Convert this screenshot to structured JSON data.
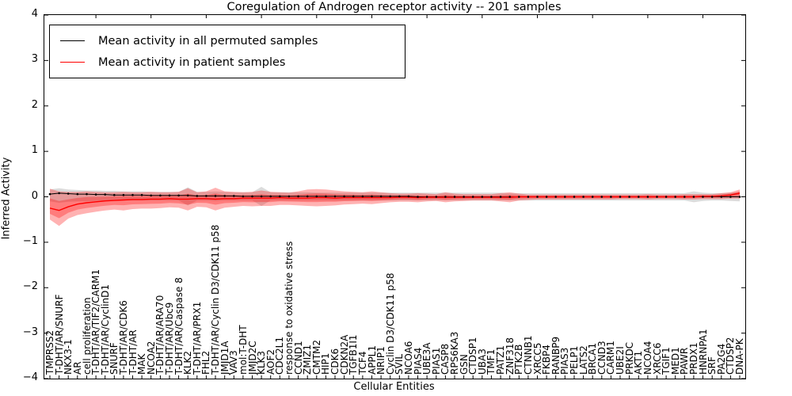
{
  "title": "Coregulation of Androgen receptor activity -- 201 samples",
  "axes": {
    "ylabel": "Inferred Activity",
    "xlabel": "Cellular Entities",
    "y_ticks": [
      "4",
      "3",
      "2",
      "1",
      "0",
      "−1",
      "−2",
      "−3",
      "−4"
    ],
    "ylim": [
      -4,
      4
    ],
    "grid": false
  },
  "legend": {
    "position": "upper-left",
    "items": [
      {
        "label": "Mean activity in all permuted samples",
        "color": "#000000"
      },
      {
        "label": "Mean activity in patient samples",
        "color": "#ff0000"
      }
    ]
  },
  "chart_data": {
    "type": "line",
    "title": "Coregulation of Androgen receptor activity -- 201 samples",
    "xlabel": "Cellular Entities",
    "ylabel": "Inferred Activity",
    "ylim": [
      -4,
      4
    ],
    "band_inner_ratio": 0.5,
    "categories": [
      "TMPRSS2",
      "T-DHT/AR/SNURF",
      "NKX3-1",
      "AR",
      "cell proliferation",
      "T-DHT/AR/TIF2/CARM1",
      "T-DHT/AR/CyclinD1",
      "SNURF",
      "T-DHT/AR/CDK6",
      "T-DHT/AR",
      "MAK",
      "NCOA2",
      "T-DHT/AR/ARA70",
      "T-DHT/AR/Ubc9",
      "T-DHT/AR/Caspase 8",
      "KLK2",
      "T-DHT/AR/PRX1",
      "FHL2",
      "T-DHT/AR/Cyclin D3/CDK11 p58",
      "JMJD1A",
      "VAV3",
      "mol:T-DHT",
      "JMJD2C",
      "KLK3",
      "AOF2",
      "CDC2L1",
      "response to oxidative stress",
      "CCND1",
      "ZMIZ1",
      "CMTM2",
      "HIP1",
      "CDK6",
      "CDKN2A",
      "TGFB1I1",
      "TCF4",
      "APPL1",
      "NRIP1",
      "Cyclin D3/CDK11 p58",
      "SVIL",
      "NCOA6",
      "PIAS4",
      "UBE3A",
      "PIAS1",
      "CASP8",
      "RPS6KA3",
      "GSN",
      "CTDSP1",
      "UBA3",
      "TMF1",
      "PATZ1",
      "ZNF318",
      "PTK2B",
      "CTNNB1",
      "XRCC5",
      "FKBP4",
      "RANBP9",
      "PIAS3",
      "PELP1",
      "LATS2",
      "BRCA1",
      "CCND3",
      "CARM1",
      "UBE2I",
      "PRKDC",
      "AKT1",
      "NCOA4",
      "XRCC6",
      "TGIF1",
      "MED1",
      "PAWR",
      "PRDX1",
      "HNRNPA1",
      "SRF",
      "PA2G4",
      "CTDSP2",
      "DNA-PK"
    ],
    "series": [
      {
        "name": "Mean activity in all permuted samples",
        "color": "#000000",
        "band_color": "#808080",
        "values": [
          0.06,
          0.08,
          0.07,
          0.06,
          0.06,
          0.05,
          0.05,
          0.04,
          0.04,
          0.04,
          0.04,
          0.03,
          0.03,
          0.03,
          0.03,
          0.03,
          0.02,
          0.02,
          0.02,
          0.02,
          0.02,
          0.01,
          0.01,
          0.01,
          0.01,
          0.01,
          0.01,
          0.01,
          0.01,
          0.01,
          0.01,
          0.01,
          0.01,
          0.01,
          0.01,
          0.01,
          0.01,
          0.01,
          0.01,
          0.01,
          0,
          0,
          0,
          0,
          0,
          0,
          0,
          0,
          0,
          0,
          0,
          0,
          0,
          0,
          0,
          0,
          0,
          0,
          0,
          0,
          0,
          0,
          0,
          0,
          0,
          0,
          0,
          0,
          0,
          0,
          0,
          0,
          0,
          0,
          0,
          0
        ],
        "band_upper": [
          0.16,
          0.19,
          0.16,
          0.15,
          0.14,
          0.14,
          0.13,
          0.13,
          0.12,
          0.12,
          0.12,
          0.11,
          0.11,
          0.11,
          0.11,
          0.21,
          0.11,
          0.11,
          0.12,
          0.11,
          0.1,
          0.1,
          0.1,
          0.22,
          0.1,
          0.1,
          0.1,
          0.1,
          0.1,
          0.09,
          0.09,
          0.09,
          0.09,
          0.09,
          0.09,
          0.09,
          0.09,
          0.09,
          0.09,
          0.09,
          0.09,
          0.09,
          0.09,
          0.09,
          0.09,
          0.09,
          0.09,
          0.09,
          0.09,
          0.09,
          0.08,
          0.08,
          0.08,
          0.08,
          0.08,
          0.08,
          0.08,
          0.08,
          0.08,
          0.08,
          0.08,
          0.08,
          0.08,
          0.08,
          0.08,
          0.08,
          0.08,
          0.08,
          0.08,
          0.08,
          0.12,
          0.09,
          0.08,
          0.08,
          0.09,
          0.1
        ],
        "band_lower": [
          -0.1,
          -0.13,
          -0.11,
          -0.1,
          -0.1,
          -0.09,
          -0.09,
          -0.08,
          -0.08,
          -0.08,
          -0.08,
          -0.08,
          -0.08,
          -0.08,
          -0.08,
          -0.19,
          -0.08,
          -0.08,
          -0.09,
          -0.08,
          -0.08,
          -0.08,
          -0.08,
          -0.2,
          -0.08,
          -0.08,
          -0.08,
          -0.08,
          -0.08,
          -0.08,
          -0.08,
          -0.08,
          -0.08,
          -0.08,
          -0.08,
          -0.08,
          -0.08,
          -0.08,
          -0.08,
          -0.08,
          -0.08,
          -0.08,
          -0.08,
          -0.08,
          -0.08,
          -0.08,
          -0.08,
          -0.08,
          -0.08,
          -0.08,
          -0.08,
          -0.08,
          -0.08,
          -0.08,
          -0.08,
          -0.08,
          -0.08,
          -0.08,
          -0.08,
          -0.08,
          -0.08,
          -0.08,
          -0.08,
          -0.08,
          -0.08,
          -0.08,
          -0.08,
          -0.08,
          -0.08,
          -0.08,
          -0.12,
          -0.09,
          -0.08,
          -0.08,
          -0.09,
          -0.1
        ]
      },
      {
        "name": "Mean activity in patient samples",
        "color": "#ff0000",
        "band_color": "#ff0000",
        "values": [
          -0.25,
          -0.3,
          -0.22,
          -0.16,
          -0.13,
          -0.11,
          -0.09,
          -0.08,
          -0.07,
          -0.06,
          -0.06,
          -0.05,
          -0.05,
          -0.04,
          -0.05,
          -0.05,
          -0.04,
          -0.04,
          -0.05,
          -0.04,
          -0.04,
          -0.03,
          -0.03,
          -0.03,
          -0.03,
          -0.02,
          -0.03,
          -0.03,
          -0.03,
          -0.02,
          -0.02,
          -0.03,
          -0.02,
          -0.02,
          -0.02,
          -0.02,
          -0.02,
          -0.02,
          -0.01,
          -0.01,
          -0.02,
          -0.01,
          -0.01,
          -0.01,
          -0.01,
          -0.01,
          -0.01,
          -0.01,
          -0.01,
          -0.01,
          -0.01,
          0,
          0,
          0,
          0,
          0,
          0,
          0,
          0,
          0,
          0,
          0,
          0,
          0,
          0,
          0,
          0,
          0,
          0,
          0,
          0,
          0.01,
          0.01,
          0.02,
          0.04,
          0.08
        ],
        "band_upper": [
          0.18,
          0.12,
          0.11,
          0.11,
          0.12,
          0.11,
          0.1,
          0.1,
          0.11,
          0.1,
          0.1,
          0.11,
          0.1,
          0.1,
          0.11,
          0.19,
          0.1,
          0.12,
          0.2,
          0.12,
          0.11,
          0.1,
          0.11,
          0.14,
          0.11,
          0.1,
          0.09,
          0.12,
          0.16,
          0.17,
          0.16,
          0.14,
          0.12,
          0.11,
          0.1,
          0.12,
          0.1,
          0.08,
          0.07,
          0.07,
          0.08,
          0.07,
          0.06,
          0.1,
          0.07,
          0.06,
          0.06,
          0.06,
          0.06,
          0.08,
          0.1,
          0.07,
          0.05,
          0.05,
          0.05,
          0.05,
          0.05,
          0.05,
          0.05,
          0.05,
          0.05,
          0.05,
          0.05,
          0.05,
          0.05,
          0.06,
          0.05,
          0.05,
          0.05,
          0.06,
          0.06,
          0.06,
          0.06,
          0.08,
          0.1,
          0.16
        ],
        "band_lower": [
          -0.5,
          -0.64,
          -0.48,
          -0.4,
          -0.36,
          -0.33,
          -0.3,
          -0.28,
          -0.3,
          -0.27,
          -0.26,
          -0.26,
          -0.25,
          -0.23,
          -0.24,
          -0.3,
          -0.22,
          -0.23,
          -0.3,
          -0.24,
          -0.22,
          -0.2,
          -0.21,
          -0.2,
          -0.2,
          -0.18,
          -0.18,
          -0.19,
          -0.2,
          -0.21,
          -0.2,
          -0.19,
          -0.17,
          -0.16,
          -0.15,
          -0.16,
          -0.14,
          -0.12,
          -0.11,
          -0.11,
          -0.12,
          -0.1,
          -0.09,
          -0.12,
          -0.1,
          -0.09,
          -0.08,
          -0.08,
          -0.08,
          -0.1,
          -0.12,
          -0.08,
          -0.07,
          -0.06,
          -0.06,
          -0.06,
          -0.06,
          -0.06,
          -0.06,
          -0.06,
          -0.06,
          -0.06,
          -0.05,
          -0.05,
          -0.05,
          -0.06,
          -0.05,
          -0.05,
          -0.05,
          -0.06,
          -0.06,
          -0.05,
          -0.05,
          -0.05,
          -0.04,
          -0.04
        ]
      }
    ]
  }
}
